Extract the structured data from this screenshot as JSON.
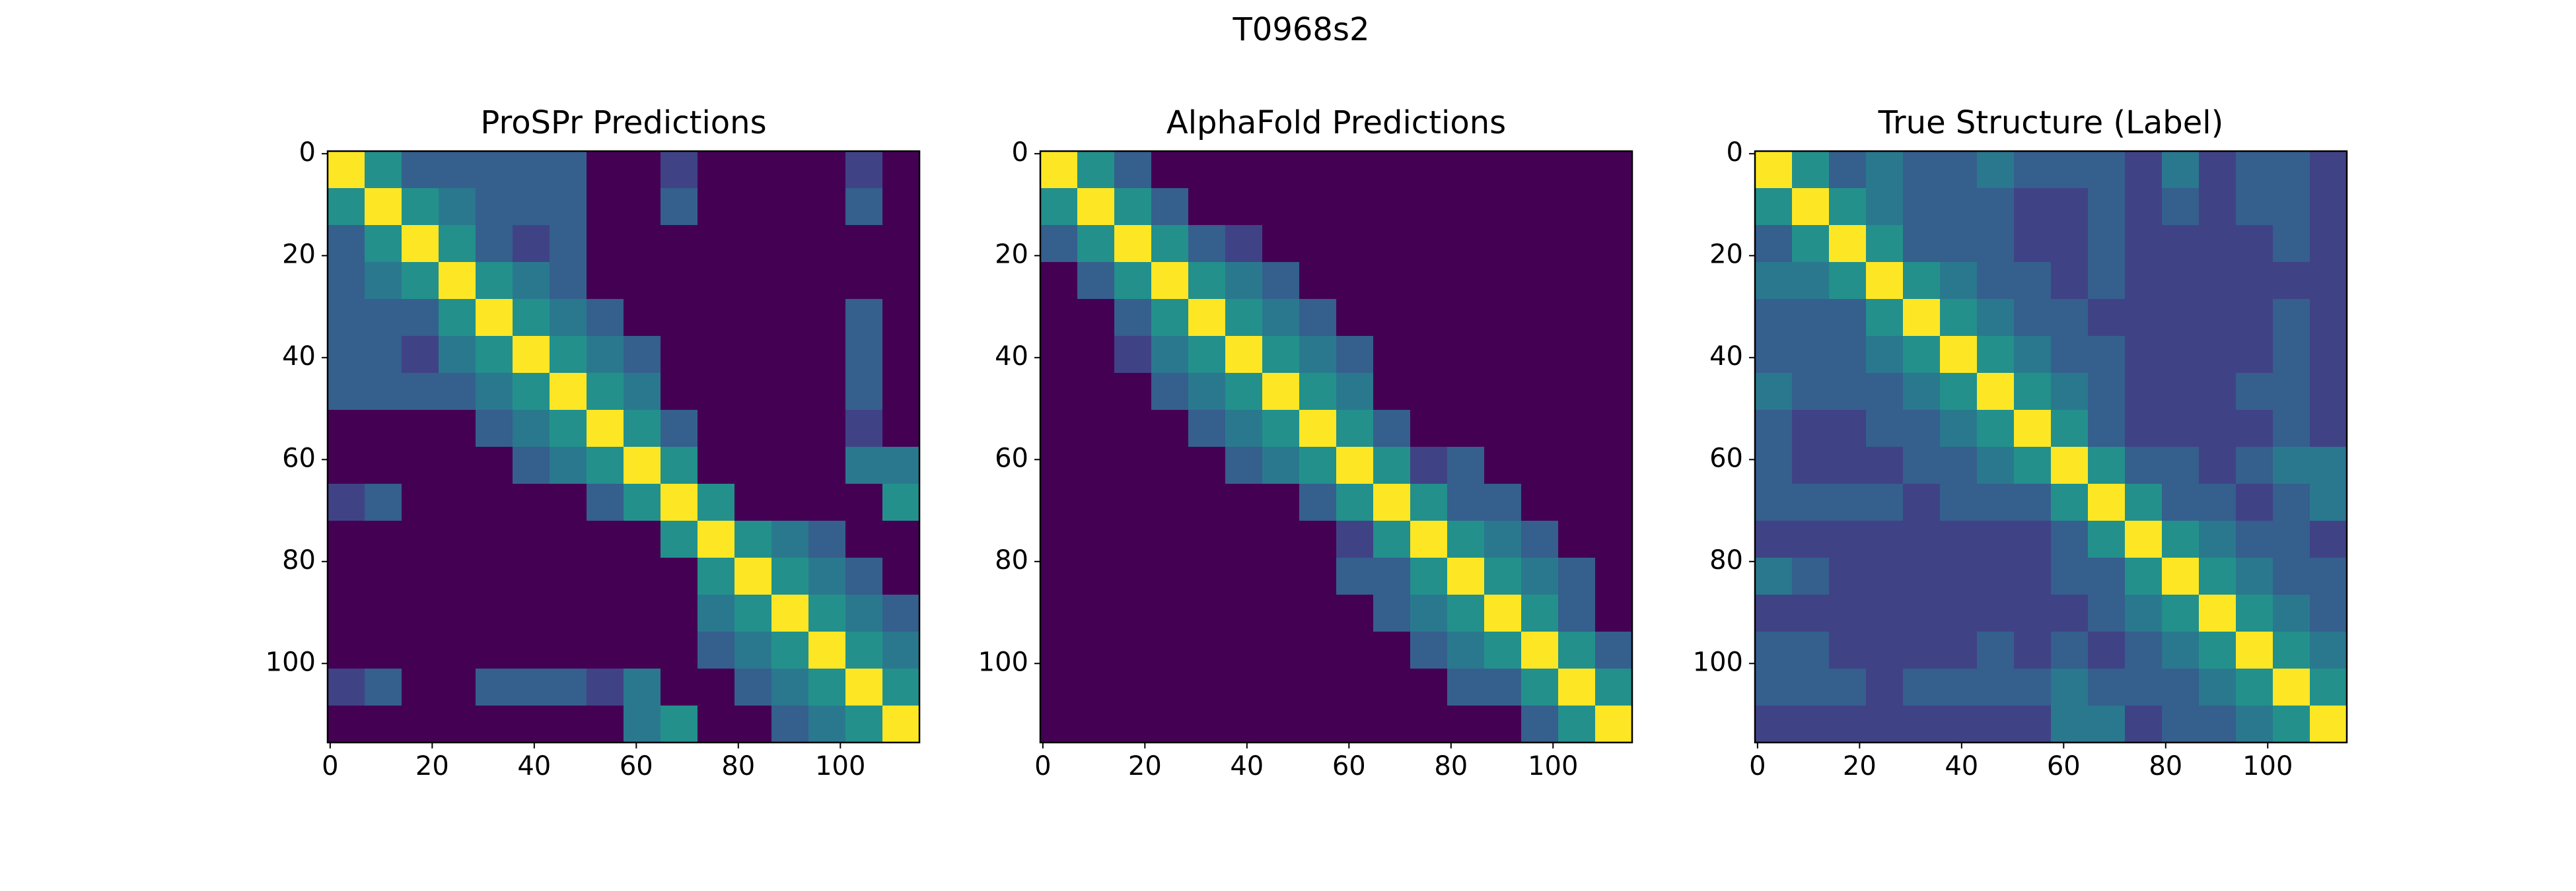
{
  "title": "T0968s2",
  "chart_data": [
    {
      "type": "heatmap",
      "title": "ProSPr Predictions",
      "colormap": "viridis",
      "clim": [
        0,
        1
      ],
      "xlim": [
        -0.5,
        115.5
      ],
      "ylim": [
        115.5,
        -0.5
      ],
      "xticks": [
        0,
        20,
        40,
        60,
        80,
        100
      ],
      "yticks": [
        0,
        20,
        40,
        60,
        80,
        100
      ],
      "z": [
        [
          1,
          0.5,
          0.3,
          0.3,
          0.3,
          0.3,
          0.3,
          0,
          0,
          0.2,
          0,
          0,
          0,
          0,
          0.2,
          0
        ],
        [
          0.5,
          1,
          0.5,
          0.4,
          0.3,
          0.3,
          0.3,
          0,
          0,
          0.3,
          0,
          0,
          0,
          0,
          0.3,
          0
        ],
        [
          0.3,
          0.5,
          1,
          0.5,
          0.3,
          0.2,
          0.3,
          0,
          0,
          0,
          0,
          0,
          0,
          0,
          0,
          0
        ],
        [
          0.3,
          0.4,
          0.5,
          1,
          0.5,
          0.4,
          0.3,
          0,
          0,
          0,
          0,
          0,
          0,
          0,
          0,
          0
        ],
        [
          0.3,
          0.3,
          0.3,
          0.5,
          1,
          0.5,
          0.4,
          0.3,
          0,
          0,
          0,
          0,
          0,
          0,
          0.3,
          0
        ],
        [
          0.3,
          0.3,
          0.2,
          0.4,
          0.5,
          1,
          0.5,
          0.4,
          0.3,
          0,
          0,
          0,
          0,
          0,
          0.3,
          0
        ],
        [
          0.3,
          0.3,
          0.3,
          0.3,
          0.4,
          0.5,
          1,
          0.5,
          0.4,
          0,
          0,
          0,
          0,
          0,
          0.3,
          0
        ],
        [
          0,
          0,
          0,
          0,
          0.3,
          0.4,
          0.5,
          1,
          0.5,
          0.3,
          0,
          0,
          0,
          0,
          0.2,
          0
        ],
        [
          0,
          0,
          0,
          0,
          0,
          0.3,
          0.4,
          0.5,
          1,
          0.5,
          0,
          0,
          0,
          0,
          0.4,
          0.4
        ],
        [
          0.2,
          0.3,
          0,
          0,
          0,
          0,
          0,
          0.3,
          0.5,
          1,
          0.5,
          0,
          0,
          0,
          0,
          0.5
        ],
        [
          0,
          0,
          0,
          0,
          0,
          0,
          0,
          0,
          0,
          0.5,
          1,
          0.5,
          0.4,
          0.3,
          0,
          0
        ],
        [
          0,
          0,
          0,
          0,
          0,
          0,
          0,
          0,
          0,
          0,
          0.5,
          1,
          0.5,
          0.4,
          0.3,
          0
        ],
        [
          0,
          0,
          0,
          0,
          0,
          0,
          0,
          0,
          0,
          0,
          0.4,
          0.5,
          1,
          0.5,
          0.4,
          0.3
        ],
        [
          0,
          0,
          0,
          0,
          0,
          0,
          0,
          0,
          0,
          0,
          0.3,
          0.4,
          0.5,
          1,
          0.5,
          0.4
        ],
        [
          0.2,
          0.3,
          0,
          0,
          0.3,
          0.3,
          0.3,
          0.2,
          0.4,
          0,
          0,
          0.3,
          0.4,
          0.5,
          1,
          0.5
        ],
        [
          0,
          0,
          0,
          0,
          0,
          0,
          0,
          0,
          0.4,
          0.5,
          0,
          0,
          0.3,
          0.4,
          0.5,
          1
        ]
      ]
    },
    {
      "type": "heatmap",
      "title": "AlphaFold Predictions",
      "colormap": "viridis",
      "clim": [
        0,
        1
      ],
      "xlim": [
        -0.5,
        115.5
      ],
      "ylim": [
        115.5,
        -0.5
      ],
      "xticks": [
        0,
        20,
        40,
        60,
        80,
        100
      ],
      "yticks": [
        0,
        20,
        40,
        60,
        80,
        100
      ],
      "z": [
        [
          1,
          0.5,
          0.3,
          0,
          0,
          0,
          0,
          0,
          0,
          0,
          0,
          0,
          0,
          0,
          0,
          0
        ],
        [
          0.5,
          1,
          0.5,
          0.3,
          0,
          0,
          0,
          0,
          0,
          0,
          0,
          0,
          0,
          0,
          0,
          0
        ],
        [
          0.3,
          0.5,
          1,
          0.5,
          0.3,
          0.2,
          0,
          0,
          0,
          0,
          0,
          0,
          0,
          0,
          0,
          0
        ],
        [
          0,
          0.3,
          0.5,
          1,
          0.5,
          0.4,
          0.3,
          0,
          0,
          0,
          0,
          0,
          0,
          0,
          0,
          0
        ],
        [
          0,
          0,
          0.3,
          0.5,
          1,
          0.5,
          0.4,
          0.3,
          0,
          0,
          0,
          0,
          0,
          0,
          0,
          0
        ],
        [
          0,
          0,
          0.2,
          0.4,
          0.5,
          1,
          0.5,
          0.4,
          0.3,
          0,
          0,
          0,
          0,
          0,
          0,
          0
        ],
        [
          0,
          0,
          0,
          0.3,
          0.4,
          0.5,
          1,
          0.5,
          0.4,
          0,
          0,
          0,
          0,
          0,
          0,
          0
        ],
        [
          0,
          0,
          0,
          0,
          0.3,
          0.4,
          0.5,
          1,
          0.5,
          0.3,
          0,
          0,
          0,
          0,
          0,
          0
        ],
        [
          0,
          0,
          0,
          0,
          0,
          0.3,
          0.4,
          0.5,
          1,
          0.5,
          0.2,
          0.3,
          0,
          0,
          0,
          0
        ],
        [
          0,
          0,
          0,
          0,
          0,
          0,
          0,
          0.3,
          0.5,
          1,
          0.5,
          0.3,
          0.3,
          0,
          0,
          0
        ],
        [
          0,
          0,
          0,
          0,
          0,
          0,
          0,
          0,
          0.2,
          0.5,
          1,
          0.5,
          0.4,
          0.3,
          0,
          0
        ],
        [
          0,
          0,
          0,
          0,
          0,
          0,
          0,
          0,
          0.3,
          0.3,
          0.5,
          1,
          0.5,
          0.4,
          0.3,
          0
        ],
        [
          0,
          0,
          0,
          0,
          0,
          0,
          0,
          0,
          0,
          0.3,
          0.4,
          0.5,
          1,
          0.5,
          0.3,
          0
        ],
        [
          0,
          0,
          0,
          0,
          0,
          0,
          0,
          0,
          0,
          0,
          0.3,
          0.4,
          0.5,
          1,
          0.5,
          0.3
        ],
        [
          0,
          0,
          0,
          0,
          0,
          0,
          0,
          0,
          0,
          0,
          0,
          0.3,
          0.3,
          0.5,
          1,
          0.5
        ],
        [
          0,
          0,
          0,
          0,
          0,
          0,
          0,
          0,
          0,
          0,
          0,
          0,
          0,
          0.3,
          0.5,
          1
        ]
      ]
    },
    {
      "type": "heatmap",
      "title": "True Structure (Label)",
      "colormap": "viridis",
      "clim": [
        0,
        1
      ],
      "xlim": [
        -0.5,
        115.5
      ],
      "ylim": [
        115.5,
        -0.5
      ],
      "xticks": [
        0,
        20,
        40,
        60,
        80,
        100
      ],
      "yticks": [
        0,
        20,
        40,
        60,
        80,
        100
      ],
      "z": [
        [
          1,
          0.5,
          0.3,
          0.4,
          0.3,
          0.3,
          0.4,
          0.3,
          0.3,
          0.3,
          0.2,
          0.4,
          0.2,
          0.3,
          0.3,
          0.2
        ],
        [
          0.5,
          1,
          0.5,
          0.4,
          0.3,
          0.3,
          0.3,
          0.2,
          0.2,
          0.3,
          0.2,
          0.3,
          0.2,
          0.3,
          0.3,
          0.2
        ],
        [
          0.3,
          0.5,
          1,
          0.5,
          0.3,
          0.3,
          0.3,
          0.2,
          0.2,
          0.3,
          0.2,
          0.2,
          0.2,
          0.2,
          0.3,
          0.2
        ],
        [
          0.4,
          0.4,
          0.5,
          1,
          0.5,
          0.4,
          0.3,
          0.3,
          0.2,
          0.3,
          0.2,
          0.2,
          0.2,
          0.2,
          0.2,
          0.2
        ],
        [
          0.3,
          0.3,
          0.3,
          0.5,
          1,
          0.5,
          0.4,
          0.3,
          0.3,
          0.2,
          0.2,
          0.2,
          0.2,
          0.2,
          0.3,
          0.2
        ],
        [
          0.3,
          0.3,
          0.3,
          0.4,
          0.5,
          1,
          0.5,
          0.4,
          0.3,
          0.3,
          0.2,
          0.2,
          0.2,
          0.2,
          0.3,
          0.2
        ],
        [
          0.4,
          0.3,
          0.3,
          0.3,
          0.4,
          0.5,
          1,
          0.5,
          0.4,
          0.3,
          0.2,
          0.2,
          0.2,
          0.3,
          0.3,
          0.2
        ],
        [
          0.3,
          0.2,
          0.2,
          0.3,
          0.3,
          0.4,
          0.5,
          1,
          0.5,
          0.3,
          0.2,
          0.2,
          0.2,
          0.2,
          0.3,
          0.2
        ],
        [
          0.3,
          0.2,
          0.2,
          0.2,
          0.3,
          0.3,
          0.4,
          0.5,
          1,
          0.5,
          0.3,
          0.3,
          0.2,
          0.3,
          0.4,
          0.4
        ],
        [
          0.3,
          0.3,
          0.3,
          0.3,
          0.2,
          0.3,
          0.3,
          0.3,
          0.5,
          1,
          0.5,
          0.3,
          0.3,
          0.2,
          0.3,
          0.4
        ],
        [
          0.2,
          0.2,
          0.2,
          0.2,
          0.2,
          0.2,
          0.2,
          0.2,
          0.3,
          0.5,
          1,
          0.5,
          0.4,
          0.3,
          0.3,
          0.2
        ],
        [
          0.4,
          0.3,
          0.2,
          0.2,
          0.2,
          0.2,
          0.2,
          0.2,
          0.3,
          0.3,
          0.5,
          1,
          0.5,
          0.4,
          0.3,
          0.3
        ],
        [
          0.2,
          0.2,
          0.2,
          0.2,
          0.2,
          0.2,
          0.2,
          0.2,
          0.2,
          0.3,
          0.4,
          0.5,
          1,
          0.5,
          0.4,
          0.3
        ],
        [
          0.3,
          0.3,
          0.2,
          0.2,
          0.2,
          0.2,
          0.3,
          0.2,
          0.3,
          0.2,
          0.3,
          0.4,
          0.5,
          1,
          0.5,
          0.4
        ],
        [
          0.3,
          0.3,
          0.3,
          0.2,
          0.3,
          0.3,
          0.3,
          0.3,
          0.4,
          0.3,
          0.3,
          0.3,
          0.4,
          0.5,
          1,
          0.5
        ],
        [
          0.2,
          0.2,
          0.2,
          0.2,
          0.2,
          0.2,
          0.2,
          0.2,
          0.4,
          0.4,
          0.2,
          0.3,
          0.3,
          0.4,
          0.5,
          1
        ]
      ]
    }
  ]
}
